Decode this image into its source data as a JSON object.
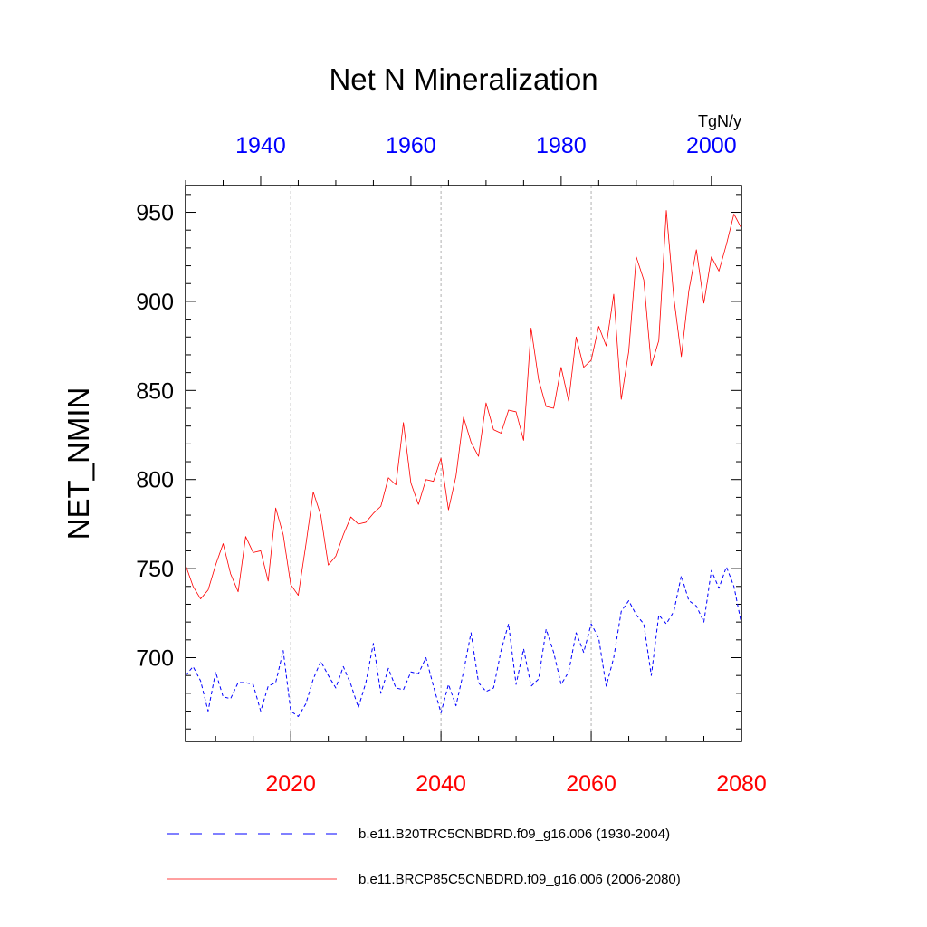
{
  "chart_data": {
    "type": "line",
    "title": "Net N Mineralization",
    "ylabel": "NET_NMIN",
    "units": "TgN/y",
    "ylim": [
      653,
      965
    ],
    "yticks": [
      700,
      750,
      800,
      850,
      900,
      950
    ],
    "ytick_labels": [
      "700",
      "750",
      "800",
      "850",
      "900",
      "950"
    ],
    "bottom_axis": {
      "range": [
        2006,
        2080
      ],
      "ticks": [
        2020,
        2040,
        2060,
        2080
      ],
      "tick_labels": [
        "2020",
        "2040",
        "2060",
        "2080"
      ],
      "color": "#ff0000"
    },
    "top_axis": {
      "range": [
        1930,
        2004
      ],
      "ticks": [
        1940,
        1960,
        1980,
        2000
      ],
      "tick_labels": [
        "1940",
        "1960",
        "1980",
        "2000"
      ],
      "color": "#0000ff"
    },
    "gridlines_x": [
      2020,
      2040,
      2060
    ],
    "series": [
      {
        "name": "b.e11.B20TRC5CNBDRD.f09_g16.006 (1930-2004)",
        "color": "#0000ff",
        "style": "dashed",
        "x_start": 1930,
        "values": [
          690,
          695,
          687,
          670,
          692,
          678,
          677,
          686,
          686,
          685,
          670,
          684,
          686,
          704,
          670,
          667,
          674,
          688,
          698,
          690,
          683,
          695,
          685,
          672,
          686,
          708,
          680,
          694,
          683,
          682,
          692,
          691,
          700,
          684,
          669,
          685,
          673,
          692,
          714,
          686,
          681,
          683,
          704,
          719,
          685,
          705,
          684,
          688,
          716,
          703,
          685,
          692,
          714,
          703,
          719,
          711,
          684,
          700,
          726,
          732,
          724,
          719,
          690,
          724,
          719,
          726,
          746,
          732,
          729,
          720,
          749,
          739,
          751,
          740,
          719
        ]
      },
      {
        "name": "b.e11.BRCP85C5CNBDRD.f09_g16.006 (2006-2080)",
        "color": "#ff0000",
        "style": "solid",
        "x_start": 2006,
        "values": [
          752,
          740,
          733,
          738,
          752,
          764,
          747,
          737,
          768,
          759,
          760,
          743,
          784,
          769,
          741,
          735,
          763,
          793,
          780,
          752,
          757,
          769,
          779,
          775,
          776,
          781,
          785,
          801,
          797,
          832,
          798,
          786,
          800,
          799,
          812,
          783,
          802,
          835,
          821,
          813,
          843,
          828,
          826,
          839,
          838,
          822,
          885,
          856,
          841,
          840,
          863,
          844,
          880,
          863,
          867,
          886,
          875,
          904,
          845,
          872,
          925,
          912,
          864,
          878,
          951,
          902,
          869,
          906,
          929,
          899,
          925,
          917,
          932,
          949,
          941
        ]
      }
    ]
  }
}
